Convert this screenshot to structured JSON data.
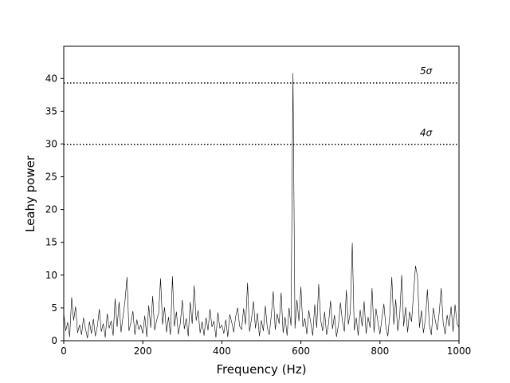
{
  "chart_data": {
    "type": "line",
    "xlabel": "Frequency (Hz)",
    "ylabel": "Leahy power",
    "xlim": [
      0,
      1000
    ],
    "ylim": [
      0,
      44.9
    ],
    "xticks": [
      0,
      200,
      400,
      600,
      800,
      1000
    ],
    "yticks": [
      0,
      5,
      10,
      15,
      20,
      25,
      30,
      35,
      40
    ],
    "hlines": [
      {
        "value": 39.3,
        "label": "5σ"
      },
      {
        "value": 29.9,
        "label": "4σ"
      }
    ],
    "series": [
      {
        "color": "#000000",
        "x": [
          0,
          5,
          10,
          15,
          20,
          25,
          30,
          35,
          40,
          45,
          50,
          55,
          60,
          65,
          70,
          75,
          80,
          85,
          90,
          95,
          100,
          105,
          110,
          115,
          120,
          125,
          130,
          135,
          140,
          145,
          150,
          155,
          160,
          165,
          170,
          175,
          180,
          185,
          190,
          195,
          200,
          205,
          210,
          215,
          220,
          225,
          230,
          235,
          240,
          245,
          250,
          255,
          260,
          265,
          270,
          275,
          280,
          285,
          290,
          295,
          300,
          305,
          310,
          315,
          320,
          325,
          330,
          335,
          340,
          345,
          350,
          355,
          360,
          365,
          370,
          375,
          380,
          385,
          390,
          395,
          400,
          405,
          410,
          415,
          420,
          425,
          430,
          435,
          440,
          445,
          450,
          455,
          460,
          465,
          470,
          475,
          480,
          485,
          490,
          495,
          500,
          505,
          510,
          515,
          520,
          525,
          530,
          535,
          540,
          545,
          550,
          555,
          560,
          565,
          570,
          575,
          580,
          585,
          590,
          595,
          600,
          605,
          610,
          615,
          620,
          625,
          630,
          635,
          640,
          645,
          650,
          655,
          660,
          665,
          670,
          675,
          680,
          685,
          690,
          695,
          700,
          705,
          710,
          715,
          720,
          725,
          730,
          735,
          740,
          745,
          750,
          755,
          760,
          765,
          770,
          775,
          780,
          785,
          790,
          795,
          800,
          805,
          810,
          815,
          820,
          825,
          830,
          835,
          840,
          845,
          850,
          855,
          860,
          865,
          870,
          875,
          880,
          885,
          890,
          895,
          900,
          905,
          910,
          915,
          920,
          925,
          930,
          935,
          940,
          945,
          950,
          955,
          960,
          965,
          970,
          975,
          980,
          985,
          990,
          995,
          1000
        ],
        "values": [
          4.2,
          1.5,
          2.8,
          0.6,
          6.6,
          3.1,
          5.2,
          1.2,
          2.4,
          0.9,
          3.5,
          1.8,
          0.4,
          2.9,
          1.1,
          3.3,
          0.7,
          2.2,
          4.8,
          1.4,
          2.6,
          0.5,
          4.1,
          1.9,
          3.0,
          0.8,
          6.4,
          2.1,
          5.9,
          1.3,
          3.7,
          6.1,
          9.7,
          1.5,
          2.8,
          4.5,
          0.9,
          3.2,
          1.7,
          2.4,
          1.1,
          3.8,
          0.6,
          5.4,
          2.0,
          6.8,
          1.6,
          3.1,
          4.2,
          9.5,
          2.5,
          5.1,
          1.3,
          3.6,
          0.9,
          9.8,
          2.2,
          4.4,
          1.0,
          2.7,
          6.2,
          1.8,
          3.4,
          0.7,
          5.9,
          2.6,
          8.4,
          3.1,
          4.6,
          1.2,
          2.9,
          0.8,
          3.5,
          1.6,
          4.8,
          2.1,
          3.0,
          0.5,
          4.3,
          1.9,
          2.4,
          1.1,
          3.2,
          0.6,
          4.0,
          2.8,
          1.3,
          3.7,
          5.0,
          2.2,
          1.7,
          4.9,
          2.5,
          8.8,
          1.4,
          3.3,
          6.0,
          1.9,
          4.2,
          0.7,
          3.1,
          1.5,
          5.3,
          2.0,
          0.9,
          3.8,
          7.5,
          1.7,
          4.1,
          2.6,
          7.3,
          1.2,
          3.6,
          0.8,
          5.0,
          2.3,
          40.8,
          1.9,
          6.2,
          3.0,
          8.2,
          2.1,
          3.4,
          1.0,
          4.6,
          2.7,
          0.8,
          5.5,
          2.0,
          8.6,
          3.2,
          1.5,
          4.4,
          0.9,
          2.6,
          6.1,
          1.8,
          3.9,
          0.6,
          2.4,
          5.8,
          3.0,
          1.4,
          7.7,
          2.5,
          4.3,
          14.9,
          1.6,
          3.5,
          0.8,
          4.7,
          2.2,
          6.0,
          1.1,
          3.6,
          2.0,
          8.0,
          1.3,
          4.9,
          2.8,
          1.0,
          3.4,
          5.6,
          2.1,
          0.7,
          4.0,
          9.7,
          2.5,
          6.3,
          1.5,
          3.8,
          10.0,
          2.2,
          5.1,
          1.3,
          4.4,
          2.9,
          7.2,
          11.4,
          9.8,
          2.0,
          4.6,
          1.2,
          3.3,
          7.8,
          2.4,
          0.9,
          5.0,
          3.1,
          1.6,
          4.3,
          8.0,
          2.7,
          1.0,
          3.9,
          2.2,
          5.2,
          1.4,
          5.5,
          2.6,
          2.0
        ]
      }
    ]
  }
}
